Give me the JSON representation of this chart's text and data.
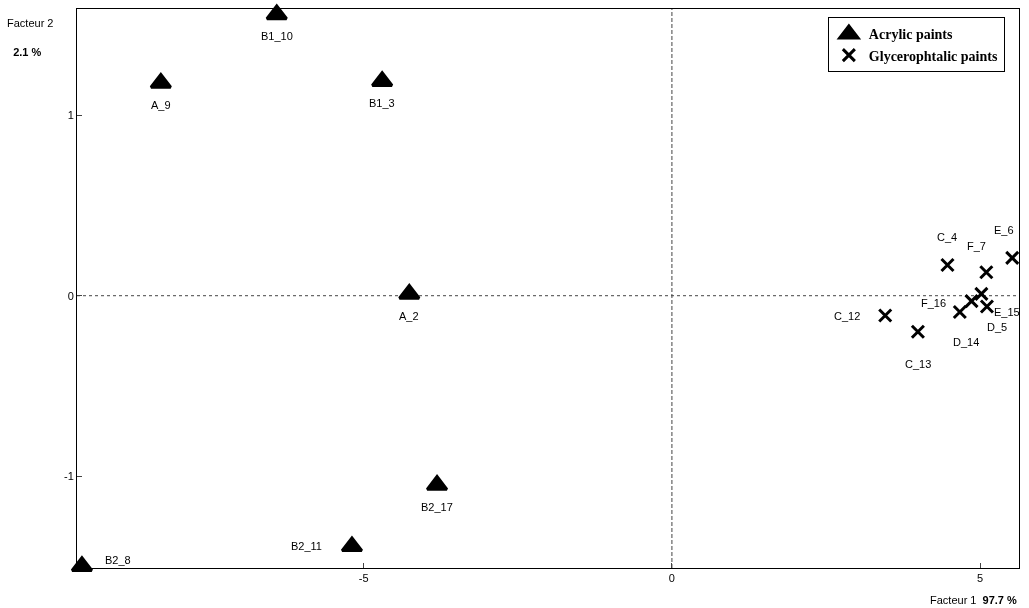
{
  "chart_data": {
    "type": "scatter",
    "xlabel": "Facteur 1 97.7 %",
    "ylabel": "Facteur 2 2.1 %",
    "xlim": [
      -9.65,
      5.63
    ],
    "ylim": [
      -1.51,
      1.59
    ],
    "xticks": [
      -5,
      0,
      5
    ],
    "yticks": [
      -1,
      0,
      1
    ],
    "grid": false,
    "legend": "top right",
    "series": [
      {
        "name": "Acrylic paints",
        "color": "#000000",
        "marker": "triangle",
        "x": [
          -6.41,
          -8.29,
          -4.7,
          -4.26,
          -3.81,
          -5.19,
          -9.57
        ],
        "values": [
          1.56,
          1.18,
          1.19,
          0.01,
          -1.05,
          -1.39,
          -1.5
        ]
      },
      {
        "name": "Glycerophtalic paints",
        "color": "#000000",
        "marker": "cross",
        "x": [
          4.47,
          5.52,
          5.1,
          5.02,
          4.86,
          4.67,
          5.11,
          3.46,
          3.99
        ],
        "values": [
          0.17,
          0.21,
          0.13,
          0.01,
          -0.03,
          -0.09,
          -0.06,
          -0.11,
          -0.2
        ]
      }
    ],
    "ref_lines": [
      {
        "axis": "x",
        "value": 0,
        "line_style": "dashed"
      },
      {
        "axis": "y",
        "value": 0,
        "line_style": "dotted"
      }
    ],
    "annotations": [
      {
        "text": "B1_10",
        "x": -6.41,
        "y": 1.56
      },
      {
        "text": "A_9",
        "x": -8.29,
        "y": 1.18
      },
      {
        "text": "B1_3",
        "x": -4.7,
        "y": 1.19
      },
      {
        "text": "A_2",
        "x": -4.26,
        "y": 0.01
      },
      {
        "text": "B2_17",
        "x": -3.81,
        "y": -1.05
      },
      {
        "text": "B2_11",
        "x": -5.19,
        "y": -1.39
      },
      {
        "text": "B2_8",
        "x": -9.57,
        "y": -1.5
      },
      {
        "text": "C_4",
        "x": 4.47,
        "y": 0.17
      },
      {
        "text": "E_6",
        "x": 5.52,
        "y": 0.21
      },
      {
        "text": "F_7",
        "x": 5.1,
        "y": 0.13
      },
      {
        "text": "E_15",
        "x": 5.02,
        "y": 0.01
      },
      {
        "text": "F_16",
        "x": 4.86,
        "y": -0.03
      },
      {
        "text": "D_14",
        "x": 4.67,
        "y": -0.09
      },
      {
        "text": "D_5",
        "x": 5.11,
        "y": -0.06
      },
      {
        "text": "C_12",
        "x": 3.46,
        "y": -0.11
      },
      {
        "text": "C_13",
        "x": 3.99,
        "y": -0.2
      }
    ]
  }
}
